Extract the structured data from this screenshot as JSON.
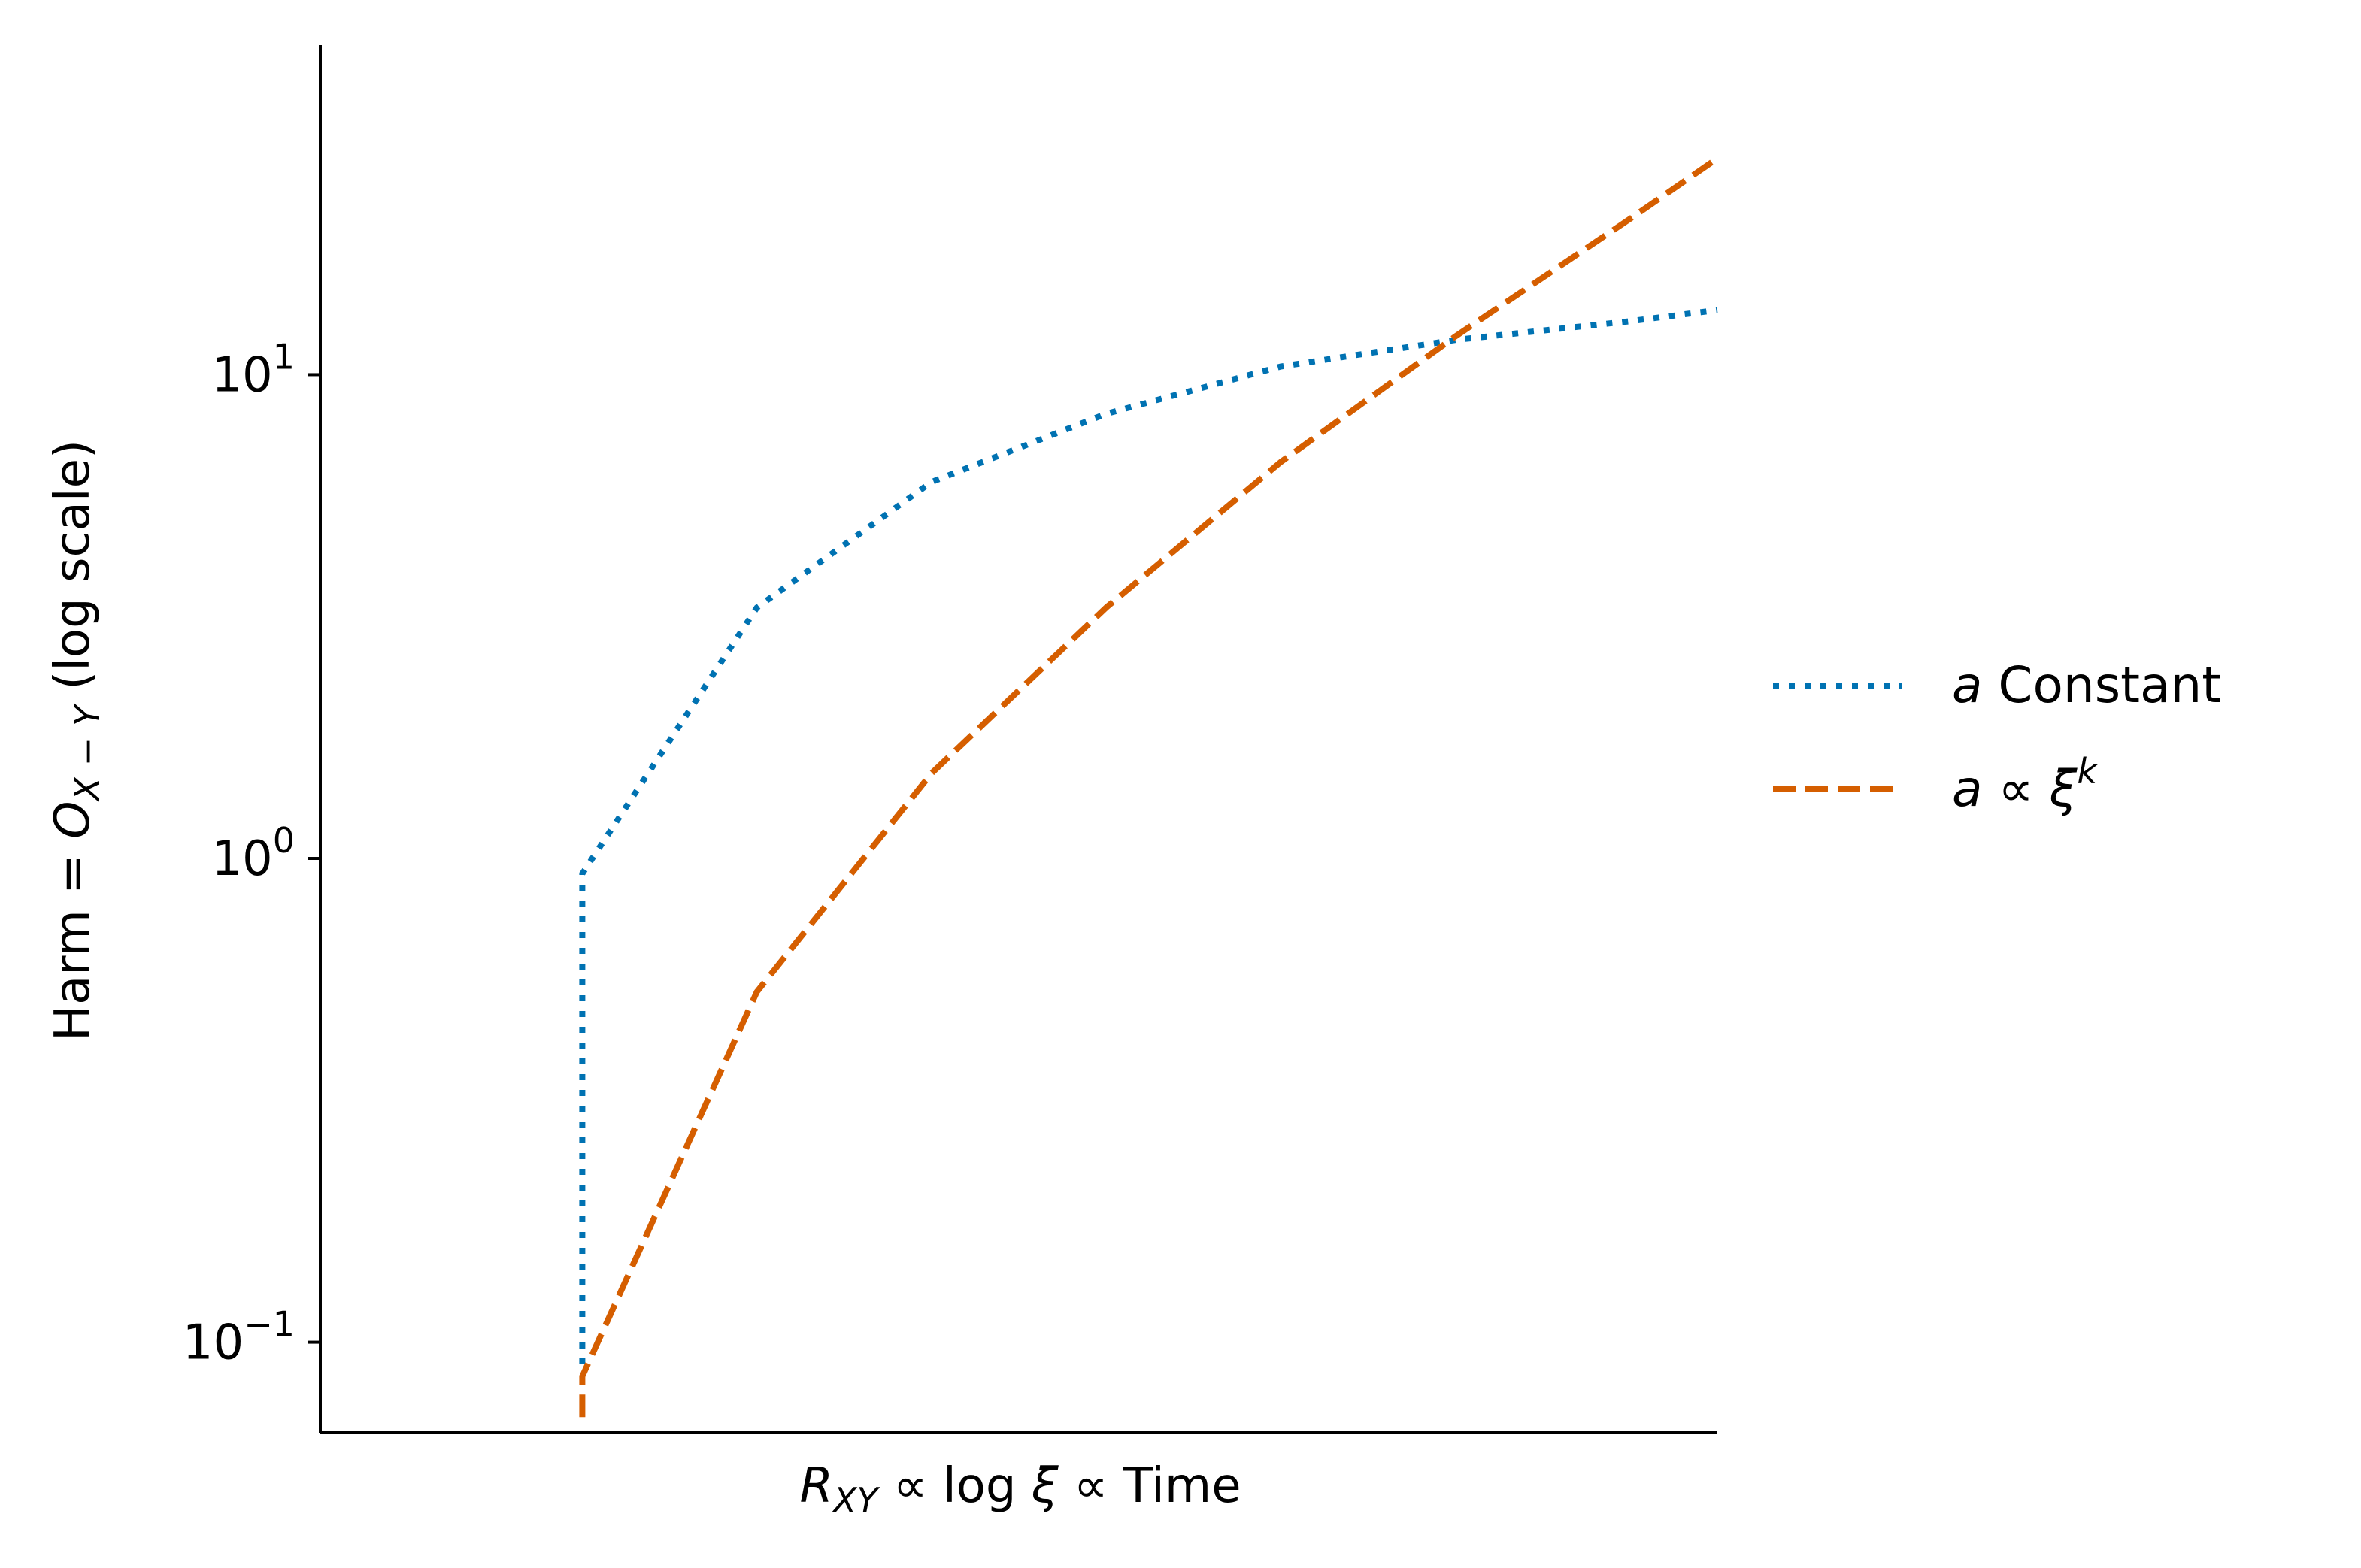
{
  "chart_data": {
    "type": "line",
    "xlabel": "R_XY ∝ log ξ ∝ Time",
    "xlabel_parts": {
      "R": "R",
      "sub": "XY",
      "rest": " ∝ log ",
      "xi": "ξ",
      "tail": " ∝ Time"
    },
    "ylabel": "Harm = O_X−Y (log scale)",
    "ylabel_parts": {
      "pre": "Harm = ",
      "O": "O",
      "sub": "X − Y",
      "post": " (log scale)"
    },
    "y_scale": "log",
    "ylim": [
      0.065,
      48
    ],
    "xlim": [
      0,
      8
    ],
    "x_ticks_shown": false,
    "y_ticks": [
      {
        "value": 0.1,
        "base": "10",
        "exp": "−1"
      },
      {
        "value": 1,
        "base": "10",
        "exp": "0"
      },
      {
        "value": 10,
        "base": "10",
        "exp": "1"
      }
    ],
    "grid": false,
    "legend_position": "right",
    "series": [
      {
        "name": "a Constant",
        "name_parts": {
          "italic": "a",
          "rest": " Constant"
        },
        "color": "#0072b2",
        "style": "dotted",
        "x": [
          1.5,
          1.5,
          2.5,
          3.5,
          4.5,
          5.5,
          6.5,
          7.5,
          8.0
        ],
        "y": [
          0.09,
          0.93,
          3.3,
          6.0,
          8.3,
          10.4,
          11.8,
          12.9,
          13.6
        ]
      },
      {
        "name": "a ∝ ξ^k",
        "name_parts": {
          "italic": "a",
          "rest": " ∝ ",
          "xi": "ξ",
          "sup": "k"
        },
        "color": "#d55e00",
        "style": "dashed",
        "x": [
          1.5,
          1.5,
          2.5,
          3.5,
          4.5,
          5.5,
          6.5,
          7.5,
          8.0
        ],
        "y": [
          0.07,
          0.085,
          0.53,
          1.5,
          3.3,
          6.6,
          12.0,
          21.0,
          28.0
        ]
      }
    ]
  }
}
